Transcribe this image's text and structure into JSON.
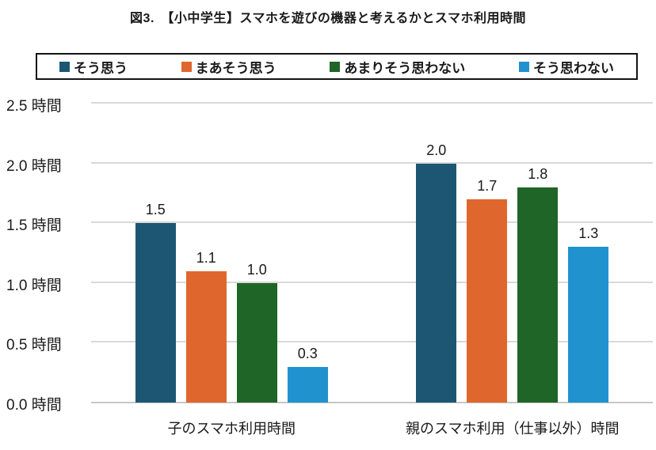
{
  "chart_data": {
    "type": "bar",
    "title": "図3.　【小中学生】スマホを遊びの機器と考えるかとスマホ利用時間",
    "categories": [
      "子のスマホ利用時間",
      "親のスマホ利用（仕事以外）時間"
    ],
    "series": [
      {
        "name": "そう思う",
        "color": "#1d5673",
        "values": [
          1.5,
          2.0
        ]
      },
      {
        "name": "まあそう思う",
        "color": "#df672d",
        "values": [
          1.1,
          1.7
        ]
      },
      {
        "name": "あまりそう思わない",
        "color": "#1f6527",
        "values": [
          1.0,
          1.8
        ]
      },
      {
        "name": "そう思わない",
        "color": "#2093cf",
        "values": [
          0.3,
          1.3
        ]
      }
    ],
    "y_unit": "時間",
    "y_ticks": [
      0.0,
      0.5,
      1.0,
      1.5,
      2.0,
      2.5
    ],
    "y_tick_labels": [
      "0.0 時間",
      "0.5 時間",
      "1.0 時間",
      "1.5 時間",
      "2.0 時間",
      "2.5 時間"
    ],
    "ylim": [
      0,
      2.5
    ],
    "grid": true,
    "legend_position": "top",
    "data_labels": true,
    "data_label_decimals": 1
  },
  "colors": {
    "grid": "#d9d9d9",
    "axis": "#c6c6c6",
    "text": "#1a1a1a",
    "legend_border": "#141414",
    "background": "#ffffff"
  }
}
